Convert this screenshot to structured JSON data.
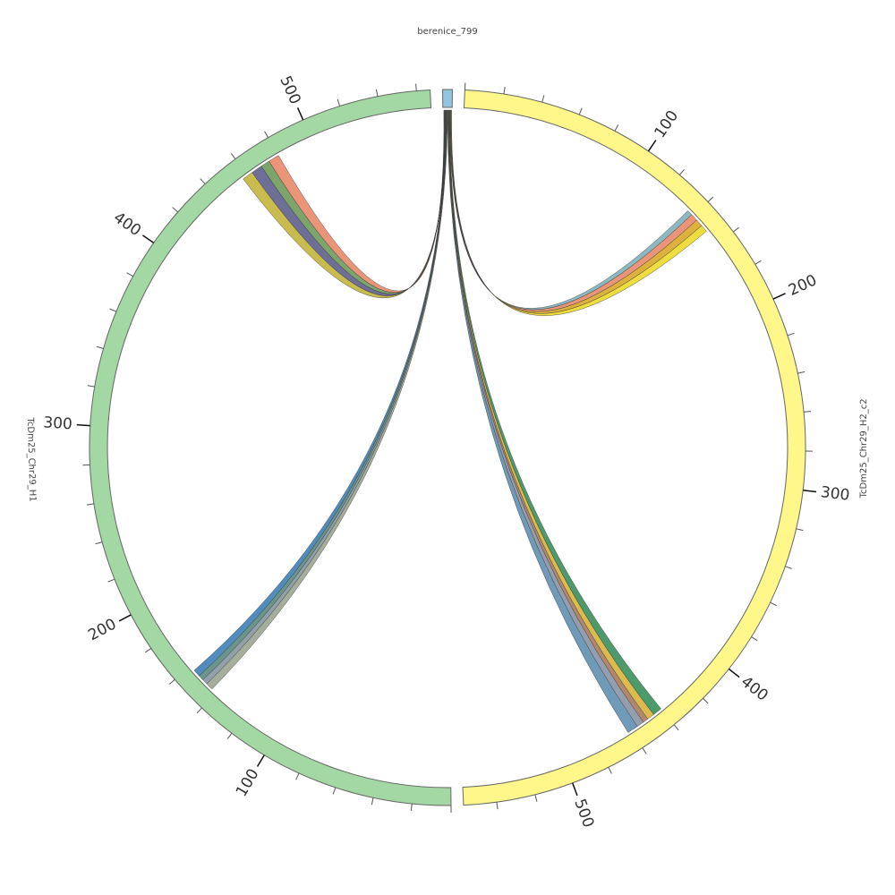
{
  "chart_data": {
    "type": "chord",
    "minor_tick_step": 20,
    "segments": [
      {
        "name": "berenice_799",
        "length": 5,
        "color": "#92c5de",
        "ticks": []
      },
      {
        "name": "TcDm25_Chr29_H2_c2",
        "length": 557,
        "color": "#fff78a",
        "ticks": [
          100,
          200,
          300,
          400,
          500
        ]
      },
      {
        "name": "TcDm25_Chr29_H1",
        "length": 567,
        "color": "#a3d7a3",
        "ticks": [
          100,
          200,
          300,
          400,
          500
        ]
      }
    ],
    "links": [
      {
        "source_segment": 0,
        "source_start": 0.5,
        "source_end": 0.75,
        "target_segment": 2,
        "target_start": 474,
        "target_end": 480,
        "color": "#e8896a"
      },
      {
        "source_segment": 0,
        "source_start": 0.75,
        "source_end": 1.0,
        "target_segment": 2,
        "target_start": 469,
        "target_end": 474,
        "color": "#6f9a5a"
      },
      {
        "source_segment": 0,
        "source_start": 1.0,
        "source_end": 1.25,
        "target_segment": 2,
        "target_start": 463,
        "target_end": 469,
        "color": "#5e5f8c"
      },
      {
        "source_segment": 0,
        "source_start": 1.25,
        "source_end": 1.5,
        "target_segment": 2,
        "target_start": 457,
        "target_end": 463,
        "color": "#c3b43a"
      },
      {
        "source_segment": 0,
        "source_start": 1.5,
        "source_end": 1.75,
        "target_segment": 2,
        "target_start": 153,
        "target_end": 157,
        "color": "#3f7fb5"
      },
      {
        "source_segment": 0,
        "source_start": 1.75,
        "source_end": 2.0,
        "target_segment": 2,
        "target_start": 150,
        "target_end": 153,
        "color": "#5b8a7e"
      },
      {
        "source_segment": 0,
        "source_start": 2.0,
        "source_end": 2.25,
        "target_segment": 2,
        "target_start": 147,
        "target_end": 150,
        "color": "#8696a0"
      },
      {
        "source_segment": 0,
        "source_start": 2.25,
        "source_end": 2.5,
        "target_segment": 2,
        "target_start": 143,
        "target_end": 147,
        "color": "#9aa58f"
      },
      {
        "source_segment": 0,
        "source_start": 2.5,
        "source_end": 2.75,
        "target_segment": 1,
        "target_start": 456,
        "target_end": 462,
        "color": "#5f8fb0"
      },
      {
        "source_segment": 0,
        "source_start": 2.75,
        "source_end": 3.0,
        "target_segment": 1,
        "target_start": 452,
        "target_end": 456,
        "color": "#8894a6"
      },
      {
        "source_segment": 0,
        "source_start": 3.0,
        "source_end": 3.25,
        "target_segment": 1,
        "target_start": 449,
        "target_end": 452,
        "color": "#a97a5e"
      },
      {
        "source_segment": 0,
        "source_start": 3.25,
        "source_end": 3.5,
        "target_segment": 1,
        "target_start": 445,
        "target_end": 449,
        "color": "#d8b43b"
      },
      {
        "source_segment": 0,
        "source_start": 3.5,
        "source_end": 3.75,
        "target_segment": 1,
        "target_start": 440,
        "target_end": 445,
        "color": "#3a8f5c"
      },
      {
        "source_segment": 0,
        "source_start": 3.75,
        "source_end": 4.0,
        "target_segment": 1,
        "target_start": 136,
        "target_end": 139,
        "color": "#7fb1b8"
      },
      {
        "source_segment": 0,
        "source_start": 4.0,
        "source_end": 4.25,
        "target_segment": 1,
        "target_start": 139,
        "target_end": 143,
        "color": "#e8896a"
      },
      {
        "source_segment": 0,
        "source_start": 4.25,
        "source_end": 4.5,
        "target_segment": 1,
        "target_start": 143,
        "target_end": 147,
        "color": "#d9a829"
      },
      {
        "source_segment": 0,
        "source_start": 4.5,
        "source_end": 4.75,
        "target_segment": 1,
        "target_start": 147,
        "target_end": 151,
        "color": "#ecd92a"
      }
    ]
  }
}
